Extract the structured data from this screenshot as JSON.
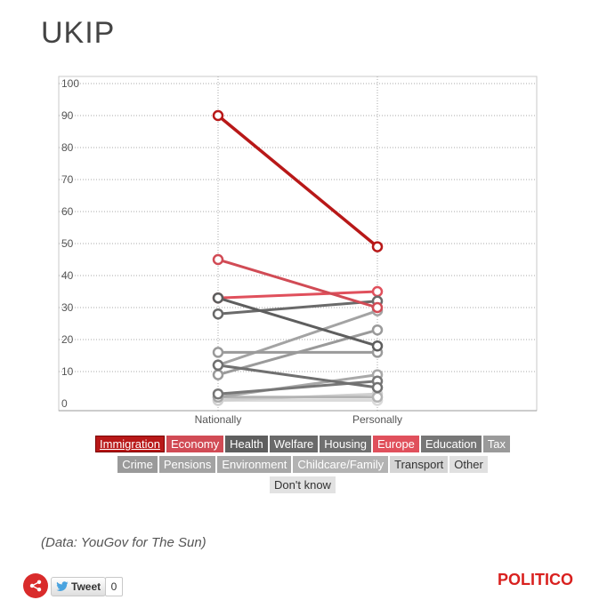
{
  "title": "UKIP",
  "chart_data": {
    "type": "slope",
    "categories": [
      "Nationally",
      "Personally"
    ],
    "ylim": [
      0,
      100
    ],
    "yticks": [
      0,
      10,
      20,
      30,
      40,
      50,
      60,
      70,
      80,
      90,
      100
    ],
    "grid": true,
    "series": [
      {
        "name": "Immigration",
        "values": [
          90,
          49
        ],
        "color": "#b81818",
        "selected": true
      },
      {
        "name": "Economy",
        "values": [
          45,
          30
        ],
        "color": "#d14b55"
      },
      {
        "name": "Health",
        "values": [
          33,
          18
        ],
        "color": "#5e5e5e"
      },
      {
        "name": "Welfare",
        "values": [
          28,
          32
        ],
        "color": "#6a6a6a"
      },
      {
        "name": "Housing",
        "values": [
          12,
          5
        ],
        "color": "#707070"
      },
      {
        "name": "Europe",
        "values": [
          33,
          35
        ],
        "color": "#e0505c"
      },
      {
        "name": "Education",
        "values": [
          3,
          7
        ],
        "color": "#777777"
      },
      {
        "name": "Tax",
        "values": [
          9,
          23
        ],
        "color": "#9a9a9a"
      },
      {
        "name": "Crime",
        "values": [
          16,
          16
        ],
        "color": "#9a9a9a"
      },
      {
        "name": "Pensions",
        "values": [
          12,
          29
        ],
        "color": "#a3a3a3"
      },
      {
        "name": "Environment",
        "values": [
          2,
          9
        ],
        "color": "#a8a8a8"
      },
      {
        "name": "Childcare/Family",
        "values": [
          2,
          2
        ],
        "color": "#b3b3b3"
      },
      {
        "name": "Transport",
        "values": [
          1,
          3
        ],
        "color": "#d0d0d0"
      },
      {
        "name": "Other",
        "values": [
          1,
          1
        ],
        "color": "#dadada"
      },
      {
        "name": "Don't know",
        "values": [
          1,
          1
        ],
        "color": "#e2e2e2"
      }
    ],
    "legend_rows": [
      [
        0,
        1,
        2,
        3,
        4,
        5,
        6,
        7
      ],
      [
        8,
        9,
        10,
        11,
        12,
        13
      ],
      [
        14
      ]
    ],
    "legend_colors": [
      "#b81818",
      "#d14b55",
      "#5e5e5e",
      "#6a6a6a",
      "#707070",
      "#e0505c",
      "#777777",
      "#9a9a9a",
      "#9a9a9a",
      "#a3a3a3",
      "#a8a8a8",
      "#b3b3b3",
      "#d5d5d5",
      "#e0e0e0",
      "#e2e2e2"
    ]
  },
  "source": "(Data: YouGov for The Sun)",
  "social": {
    "tweet_label": "Tweet",
    "tweet_count": "0"
  },
  "brand": "POLITICO"
}
